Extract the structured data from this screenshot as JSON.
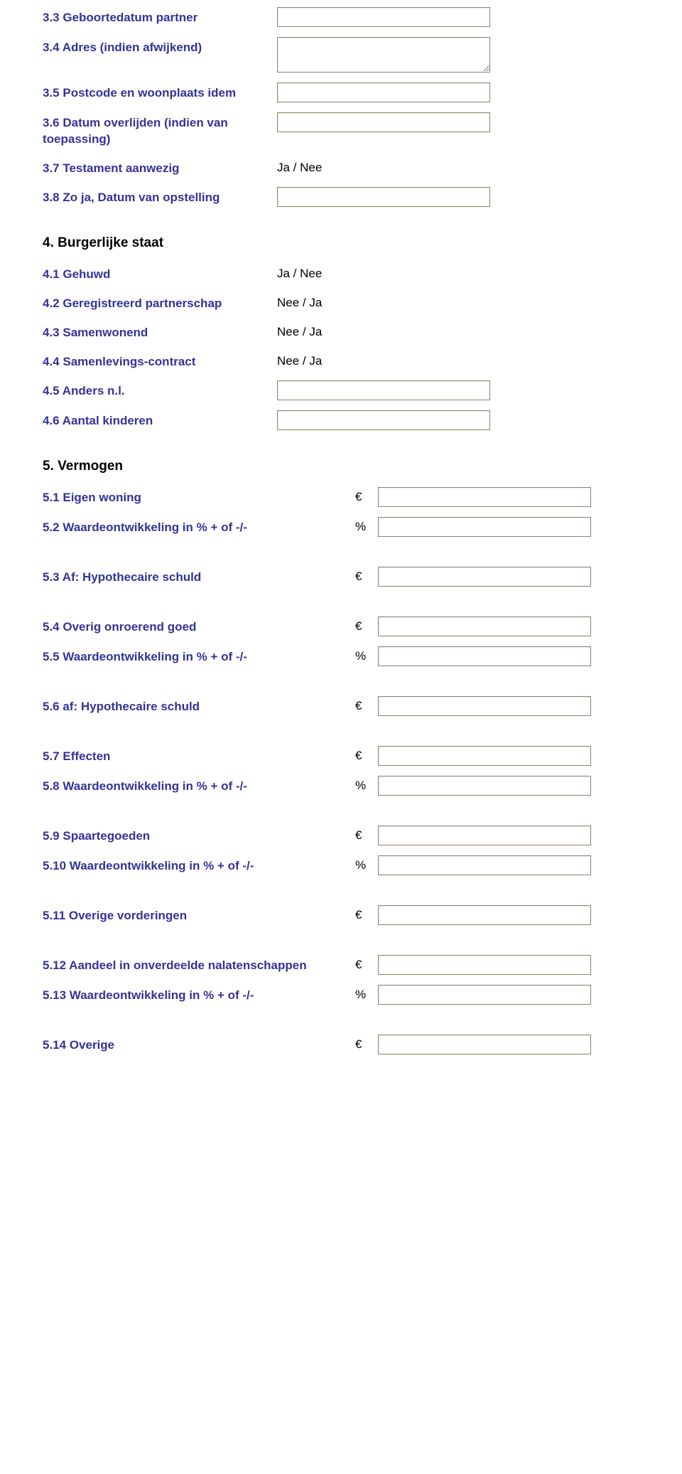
{
  "section3": {
    "items": [
      {
        "label": "3.3 Geboortedatum partner",
        "input": true
      },
      {
        "label": "3.4 Adres (indien afwijkend)",
        "input": true,
        "tall": true
      },
      {
        "label": "3.5 Postcode en woonplaats idem",
        "input": true
      },
      {
        "label": "3.6 Datum overlijden (indien van toepassing)",
        "input": true
      },
      {
        "label": "3.7 Testament aanwezig",
        "answer": "Ja / Nee"
      },
      {
        "label": "3.8 Zo ja, Datum van opstelling",
        "input": true
      }
    ]
  },
  "section4": {
    "heading": "4. Burgerlijke staat",
    "items": [
      {
        "label": "4.1 Gehuwd",
        "answer": "Ja / Nee"
      },
      {
        "label": "4.2 Geregistreerd partnerschap",
        "answer": "Nee / Ja",
        "labelBlackTail": "partnerschap"
      },
      {
        "label": "4.3 Samenwonend",
        "answer": "Nee / Ja"
      },
      {
        "label": "4.4 Samenlevings-contract",
        "answer": "Nee / Ja"
      },
      {
        "label": "4.5 Anders n.l.",
        "input": true
      },
      {
        "label": "4.6 Aantal kinderen",
        "input": true
      }
    ]
  },
  "section5": {
    "heading": "5. Vermogen",
    "items": [
      {
        "label": "5.1 Eigen woning",
        "unit": "€"
      },
      {
        "label": "5.2 Waardeontwikkeling in % + of -/-",
        "unit": "%",
        "gapAfter": true
      },
      {
        "label": "5.3 Af: Hypothecaire schuld",
        "unit": "€",
        "gapAfter": true
      },
      {
        "label": "5.4 Overig onroerend goed",
        "unit": "€"
      },
      {
        "label": "5.5 Waardeontwikkeling in % + of -/-",
        "unit": "%",
        "gapAfter": true
      },
      {
        "label": "5.6 af: Hypothecaire schuld",
        "unit": "€",
        "gapAfter": true
      },
      {
        "label": "5.7 Effecten",
        "unit": "€"
      },
      {
        "label": "5.8 Waardeontwikkeling in % + of -/-",
        "unit": "%",
        "gapAfter": true
      },
      {
        "label": "5.9 Spaartegoeden",
        "unit": "€"
      },
      {
        "label": "5.10 Waardeontwikkeling in % + of -/-",
        "unit": "%",
        "gapAfter": true
      },
      {
        "label": "5.11 Overige vorderingen",
        "unit": "€",
        "gapAfter": true
      },
      {
        "label": "5.12 Aandeel in onverdeelde nalatenschappen",
        "unit": "€"
      },
      {
        "label": "5.13 Waardeontwikkeling in % + of -/-",
        "unit": "%",
        "gapAfter": true
      },
      {
        "label": "5.14 Overige",
        "unit": "€"
      }
    ]
  }
}
